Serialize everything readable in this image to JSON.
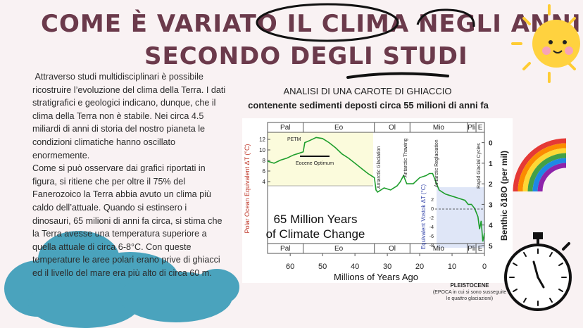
{
  "title_line1": "COME È VARIATO IL CLIMA NEGLI ANNI",
  "title_line2": "SECONDO DEGLI STUDI",
  "body": " Attraverso studi multidisciplinari è possibile ricostruire l’evoluzione del clima della Terra. I dati stratigrafici e geologici indicano, dunque, che il clima della Terra non è stabile. Nei circa 4.5 miliardi di anni di storia del nostro pianeta le condizioni climatiche hanno oscillato enormemente.\nCome si può osservare dai grafici riportati in figura, si ritiene che per oltre il 75% del Fanerozoico la Terra abbia avuto un clima più caldo dell’attuale. Quando si estinsero i dinosauri, 65 milioni di anni fa circa, si stima che la Terra avesse una temperatura superiore a quella attuale di circa 6-8°C. Con queste temperature le aree polari erano prive di ghiacci ed il livello del mare era più alto di circa 60 m.",
  "chart_heading": "ANALISI DI UNA CAROTE DI GHIACCIO",
  "chart_subheading": "contenente sedimenti deposti circa 55 milioni di anni fa",
  "pleistocene_title": "PLEISTOCENE",
  "pleistocene_note": "(EPOCA in cui si sono susseguite le quattro glaciazioni)",
  "colors": {
    "title": "#6b3a4b",
    "cloud": "#4aa3bd",
    "sun": "#ffcc33",
    "series": "#1e9e2c"
  },
  "chart_data": {
    "type": "line",
    "title": "65 Million Years of Climate Change",
    "xlabel": "Millions of Years Ago",
    "x_ticks": [
      "60",
      "50",
      "40",
      "30",
      "20",
      "10",
      "0"
    ],
    "xlim": [
      67,
      0
    ],
    "epochs": [
      "Pal",
      "Eo",
      "Ol",
      "Mio",
      "Pli",
      "E"
    ],
    "left_axis_label": "Polar Ocean Equivalent ΔT (°C)",
    "left_ticks": [
      "12",
      "10",
      "8",
      "6",
      "4"
    ],
    "right_axis_label": "Benthic δ18O (per mil)",
    "right_ticks": [
      "0",
      "1",
      "2",
      "3",
      "4",
      "5"
    ],
    "vostok_label": "Equivalent Vostok ΔT (°C)",
    "vostok_ticks": [
      "2",
      "0",
      "-2",
      "-4",
      "-6",
      "-8"
    ],
    "annotations": [
      "PETM",
      "Eocene Optimum",
      "Antarctic Glaciation",
      "Antarctic Thawing",
      "Antarctic Reglaciation",
      "Rapid Glacial Cycles"
    ],
    "series": [
      {
        "x": [
          67,
          65,
          63,
          61,
          59,
          57,
          56,
          55.5,
          54,
          52,
          50,
          48,
          46,
          44,
          42,
          40,
          38,
          36,
          34,
          33.5,
          33,
          31,
          29,
          27,
          26,
          25,
          24,
          22,
          20,
          18,
          17,
          16,
          15,
          14,
          13,
          12,
          10,
          8,
          6,
          5,
          4,
          3,
          2,
          1.5,
          1,
          0.5,
          0
        ],
        "y": [
          0.9,
          1.0,
          0.85,
          0.75,
          0.6,
          0.5,
          0.45,
          0,
          -0.1,
          -0.25,
          -0.2,
          0.0,
          0.25,
          0.55,
          0.75,
          1.0,
          1.25,
          1.5,
          1.7,
          2.3,
          2.4,
          2.2,
          2.3,
          2.1,
          1.9,
          1.6,
          2.0,
          2.0,
          1.7,
          1.6,
          1.5,
          1.5,
          1.9,
          2.3,
          2.4,
          2.5,
          2.6,
          2.7,
          2.8,
          3.0,
          3.0,
          3.2,
          3.6,
          4.2,
          3.8,
          4.8,
          4.4
        ]
      }
    ]
  }
}
